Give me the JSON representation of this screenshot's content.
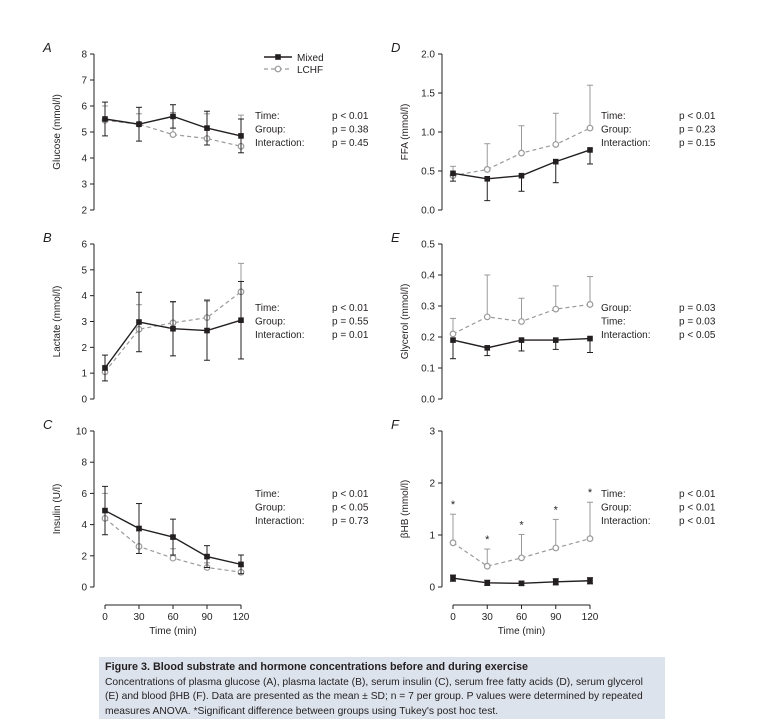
{
  "colors": {
    "mixed": "#231f20",
    "lchf": "#9a9a9a",
    "caption_bg": "#dde3ec"
  },
  "legend": {
    "mixed": "Mixed",
    "lchf": "LCHF"
  },
  "stats_labels": {
    "time": "Time:",
    "group": "Group:",
    "interaction": "Interaction:"
  },
  "caption": {
    "title": "Figure 3.  Blood substrate and hormone concentrations before and during exercise",
    "body": "Concentrations of plasma glucose (A), plasma lactate (B), serum insulin (C), serum free fatty acids (D), serum glycerol (E) and blood βHB (F). Data are presented as the mean ± SD; n = 7 per group. P values were determined by repeated measures ANOVA. *Significant difference between groups using Tukey's post hoc test."
  },
  "chart_data": [
    {
      "panel": "A",
      "type": "line",
      "ylabel": "Glucose (mmol/l)",
      "xlabel": "",
      "x": [
        0,
        30,
        60,
        90,
        120
      ],
      "xlim": [
        0,
        120
      ],
      "ylim": [
        2,
        8
      ],
      "yticks": [
        "2",
        "3",
        "4",
        "5",
        "6",
        "7",
        "8"
      ],
      "series": [
        {
          "name": "Mixed",
          "values": [
            5.5,
            5.3,
            5.6,
            5.15,
            4.85
          ],
          "err": [
            0.65,
            0.65,
            0.45,
            0.65,
            0.65
          ]
        },
        {
          "name": "LCHF",
          "values": [
            5.45,
            5.3,
            4.9,
            4.75,
            4.45
          ],
          "err": [
            0.55,
            0.4,
            0.85,
            0.95,
            1.2
          ]
        }
      ],
      "stats": {
        "time": "p < 0.01",
        "group": "p = 0.38",
        "interaction": "p = 0.45"
      }
    },
    {
      "panel": "B",
      "type": "line",
      "ylabel": "Lactate (mmol/l)",
      "xlabel": "",
      "x": [
        0,
        30,
        60,
        90,
        120
      ],
      "xlim": [
        0,
        120
      ],
      "ylim": [
        0,
        6
      ],
      "yticks": [
        "0",
        "1",
        "2",
        "3",
        "4",
        "5",
        "6"
      ],
      "series": [
        {
          "name": "Mixed",
          "values": [
            1.2,
            2.98,
            2.72,
            2.65,
            3.05
          ],
          "err": [
            0.5,
            1.15,
            1.05,
            1.15,
            1.5
          ]
        },
        {
          "name": "LCHF",
          "values": [
            1.05,
            2.7,
            2.95,
            3.15,
            4.15
          ],
          "err": [
            0.25,
            0.95,
            0.8,
            0.7,
            1.1
          ]
        }
      ],
      "stats": {
        "time": "p < 0.01",
        "group": "p = 0.55",
        "interaction": "p = 0.01"
      }
    },
    {
      "panel": "C",
      "type": "line",
      "ylabel": "Insulin (U/l)",
      "xlabel": "Time (min)",
      "x": [
        0,
        30,
        60,
        90,
        120
      ],
      "xlim": [
        0,
        120
      ],
      "ylim": [
        0,
        10
      ],
      "yticks": [
        "0",
        "2",
        "4",
        "6",
        "8",
        "10"
      ],
      "xticks": [
        "0",
        "30",
        "60",
        "90",
        "120"
      ],
      "series": [
        {
          "name": "Mixed",
          "values": [
            4.9,
            3.75,
            3.2,
            1.95,
            1.45
          ],
          "err": [
            1.55,
            1.6,
            1.15,
            0.7,
            0.6
          ]
        },
        {
          "name": "LCHF",
          "values": [
            4.4,
            2.6,
            1.85,
            1.25,
            0.95
          ],
          "err": [
            1.6,
            1.0,
            0.6,
            0.3,
            0.35
          ]
        }
      ],
      "stats": {
        "time": "p < 0.01",
        "group": "p < 0.05",
        "interaction": "p = 0.73"
      }
    },
    {
      "panel": "D",
      "type": "line",
      "ylabel": "FFA (mmol/l)",
      "xlabel": "",
      "x": [
        0,
        30,
        60,
        90,
        120
      ],
      "xlim": [
        0,
        120
      ],
      "ylim": [
        0,
        2
      ],
      "yticks": [
        "0.0",
        "0.5",
        "1.0",
        "1.5",
        "2.0"
      ],
      "series": [
        {
          "name": "Mixed",
          "values": [
            0.47,
            0.4,
            0.44,
            0.62,
            0.77
          ],
          "err": [
            0.1,
            0.28,
            0.2,
            0.27,
            0.18
          ]
        },
        {
          "name": "LCHF",
          "values": [
            0.44,
            0.52,
            0.73,
            0.84,
            1.05
          ],
          "err": [
            0.12,
            0.33,
            0.35,
            0.4,
            0.55
          ]
        }
      ],
      "stats": {
        "time": "p < 0.01",
        "group": "p = 0.23",
        "interaction": "p = 0.15"
      }
    },
    {
      "panel": "E",
      "type": "line",
      "ylabel": "Glycerol (mmol/l)",
      "xlabel": "",
      "x": [
        0,
        30,
        60,
        90,
        120
      ],
      "xlim": [
        0,
        120
      ],
      "ylim": [
        0,
        0.5
      ],
      "yticks": [
        "0.0",
        "0.1",
        "0.2",
        "0.3",
        "0.4",
        "0.5"
      ],
      "series": [
        {
          "name": "Mixed",
          "values": [
            0.19,
            0.165,
            0.19,
            0.19,
            0.195
          ],
          "err": [
            0.06,
            0.025,
            0.035,
            0.03,
            0.045
          ]
        },
        {
          "name": "LCHF",
          "values": [
            0.21,
            0.265,
            0.25,
            0.29,
            0.305
          ],
          "err": [
            0.05,
            0.135,
            0.075,
            0.075,
            0.09
          ]
        }
      ],
      "stats": {
        "group": "p = 0.03",
        "time": "p = 0.03",
        "interaction": "p < 0.05"
      }
    },
    {
      "panel": "F",
      "type": "line",
      "ylabel": "βHB (mmol/l)",
      "xlabel": "Time (min)",
      "x": [
        0,
        30,
        60,
        90,
        120
      ],
      "xlim": [
        0,
        120
      ],
      "ylim": [
        0,
        3
      ],
      "yticks": [
        "0",
        "1",
        "2",
        "3"
      ],
      "xticks": [
        "0",
        "30",
        "60",
        "90",
        "120"
      ],
      "series": [
        {
          "name": "Mixed",
          "values": [
            0.17,
            0.08,
            0.07,
            0.1,
            0.12
          ],
          "err": [
            0.06,
            0.05,
            0.04,
            0.06,
            0.06
          ]
        },
        {
          "name": "LCHF",
          "values": [
            0.85,
            0.4,
            0.56,
            0.75,
            0.93
          ],
          "err": [
            0.55,
            0.33,
            0.45,
            0.55,
            0.7
          ]
        }
      ],
      "significance": [
        "*",
        "*",
        "*",
        "*",
        "*"
      ],
      "stats": {
        "time": "p < 0.01",
        "group": "p < 0.01",
        "interaction": "p < 0.01"
      }
    }
  ]
}
